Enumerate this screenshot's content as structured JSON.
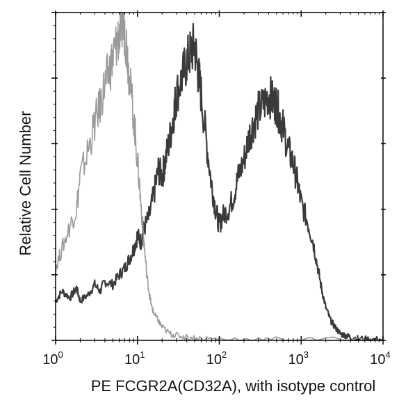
{
  "chart_data": {
    "type": "area",
    "xlabel": "PE FCGR2A(CD32A), with isotype control",
    "ylabel": "Relative Cell Number",
    "x_scale": "log",
    "xlim": [
      1,
      10000
    ],
    "ylim": [
      0,
      100
    ],
    "x_ticks": [
      {
        "base": "10",
        "exp": "0",
        "value": 1
      },
      {
        "base": "10",
        "exp": "1",
        "value": 10
      },
      {
        "base": "10",
        "exp": "2",
        "value": 100
      },
      {
        "base": "10",
        "exp": "3",
        "value": 1000
      },
      {
        "base": "10",
        "exp": "4",
        "value": 10000
      }
    ],
    "grid": false,
    "legend": "none",
    "series": [
      {
        "role": "sample",
        "color": "#3a3a3a",
        "x": [
          1.0,
          1.2,
          1.5,
          1.8,
          2.0,
          2.5,
          3.0,
          3.5,
          4.0,
          5.0,
          6.0,
          7.0,
          8.0,
          9.0,
          10.0,
          11.0,
          12.0,
          14.0,
          16.0,
          18.0,
          20.0,
          22.0,
          25.0,
          28.0,
          30.0,
          35.0,
          40.0,
          45.0,
          50.0,
          55.0,
          60.0,
          70.0,
          80.0,
          90.0,
          100.0,
          110.0,
          130.0,
          150.0,
          170.0,
          200.0,
          230.0,
          260.0,
          300.0,
          350.0,
          400.0,
          450.0,
          500.0,
          550.0,
          600.0,
          700.0,
          800.0,
          900.0,
          1000.0,
          1200.0,
          1400.0,
          1600.0,
          1800.0,
          2000.0,
          2300.0,
          2600.0,
          3000.0,
          3500.0,
          4000.0,
          5000.0,
          7000.0,
          10000.0
        ],
        "y": [
          12,
          15,
          13,
          16,
          12,
          14,
          17,
          15,
          18,
          17,
          20,
          22,
          25,
          28,
          32,
          30,
          34,
          38,
          45,
          52,
          50,
          55,
          62,
          70,
          75,
          80,
          85,
          88,
          90,
          82,
          75,
          60,
          48,
          40,
          35,
          38,
          40,
          44,
          50,
          55,
          62,
          66,
          70,
          72,
          75,
          73,
          72,
          68,
          65,
          58,
          54,
          48,
          42,
          36,
          30,
          22,
          15,
          10,
          6,
          4,
          2,
          1.5,
          1,
          0.5,
          0.3,
          0.2
        ]
      },
      {
        "role": "isotype control",
        "color": "#9a9a9a",
        "x": [
          1.0,
          1.2,
          1.5,
          1.8,
          2.0,
          2.5,
          3.0,
          3.5,
          4.0,
          4.5,
          5.0,
          5.5,
          6.0,
          6.5,
          7.0,
          7.5,
          8.0,
          9.0,
          10.0,
          11.0,
          12.0,
          13.0,
          14.0,
          15.0,
          16.0,
          18.0,
          20.0,
          25.0,
          30.0,
          40.0,
          60.0,
          100.0,
          300.0,
          1000.0,
          10000.0
        ],
        "y": [
          22,
          28,
          35,
          40,
          50,
          58,
          66,
          72,
          78,
          82,
          86,
          90,
          94,
          96,
          95,
          88,
          80,
          68,
          55,
          42,
          30,
          20,
          14,
          10,
          8,
          6,
          4,
          2,
          1.5,
          1,
          0.6,
          0.4,
          0.2,
          0.1,
          0.05
        ]
      }
    ]
  }
}
